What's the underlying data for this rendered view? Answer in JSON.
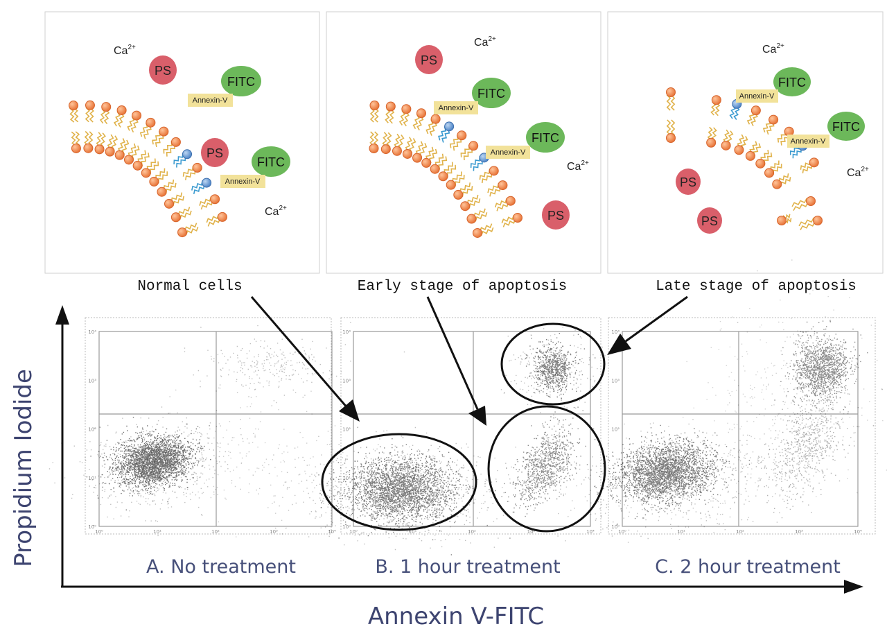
{
  "panels": [
    {
      "id": "normal",
      "caption": "Normal cells",
      "ps_label": "PS",
      "fitc_label": "FITC",
      "annexin_label": "Annexin-V",
      "ca_label": "Ca",
      "ca_sup": "2+"
    },
    {
      "id": "early",
      "caption": "Early stage of apoptosis",
      "ps_label": "PS",
      "fitc_label": "FITC",
      "annexin_label": "Annexin-V",
      "ca_label": "Ca",
      "ca_sup": "2+"
    },
    {
      "id": "late",
      "caption": "Late stage of apoptosis",
      "ps_label": "PS",
      "fitc_label": "FITC",
      "annexin_label": "Annexin-V",
      "ca_label": "Ca",
      "ca_sup": "2+"
    }
  ],
  "flow": {
    "plots": [
      {
        "label": "A.  No treatment"
      },
      {
        "label": "B. 1 hour treatment"
      },
      {
        "label": "C.  2 hour treatment"
      }
    ],
    "x_axis_title": "Annexin V-FITC",
    "y_axis_title": "Propidium Iodide",
    "ticks_x": [
      "10⁰",
      "10¹",
      "10²",
      "10³",
      "10⁴"
    ],
    "ticks_y": [
      "10⁰",
      "10¹",
      "10²",
      "10³",
      "10⁴"
    ]
  },
  "colors": {
    "ps_fill": "#d95f6a",
    "fitc_fill": "#6cb85a",
    "annexin_fill": "#f2e29a",
    "lipid_head": "#f0894f",
    "lipid_tail": "#e0b24a",
    "ps_head": "#6a9bd4",
    "axis_text": "#3d4470"
  }
}
